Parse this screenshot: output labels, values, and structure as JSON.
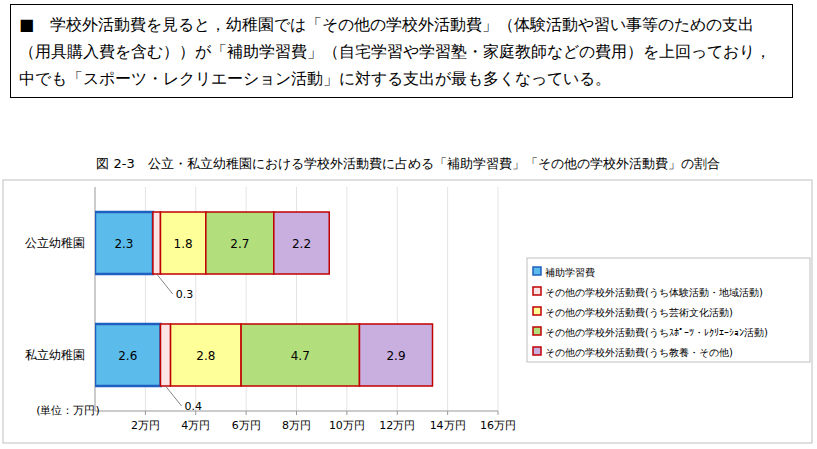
{
  "chart_data": {
    "type": "bar",
    "orientation": "horizontal",
    "stacked": true,
    "data_labels": true,
    "grid": true,
    "legend": "right",
    "annotations": [
      "■　学校外活動費を見ると，幼稚園では「その他の学校外活動費」（体験活動や習い事等のための支出（用具購入費を含む））が「補助学習費」（自宅学習や学習塾・家庭教師などの費用）を上回っており，中でも「スポーツ・レクリエーション活動」に対する支出が最も多くなっている。"
    ],
    "title": "図 2-3　公立・私立幼稚園における学校外活動費に占める「補助学習費」「その他の学校外活動費」の割合",
    "xlabel": "(単位：万円)",
    "categories": [
      "公立幼稚園",
      "私立幼稚園"
    ],
    "series": [
      {
        "name": "補助学習費",
        "color": "#5bbcec",
        "values": [
          2.3,
          2.6
        ]
      },
      {
        "name": "その他の学校外活動費(うち体験活動・地域活動)",
        "color": "#fce4e4",
        "values": [
          0.3,
          0.4
        ]
      },
      {
        "name": "その他の学校外活動費(うち芸術文化活動)",
        "color": "#ffff99",
        "values": [
          1.8,
          2.8
        ]
      },
      {
        "name": "その他の学校外活動費(うちｽﾎﾟｰﾂ・ﾚｸﾘｴｰｼｮﾝ活動)",
        "color": "#b3de7c",
        "values": [
          2.7,
          4.7
        ]
      },
      {
        "name": "その他の学校外活動費(うち教養・その他)",
        "color": "#c9aee0",
        "values": [
          2.2,
          2.9
        ]
      }
    ],
    "xlim": [
      0,
      16
    ],
    "xticks": [
      {
        "value": 2,
        "label": "2万円"
      },
      {
        "value": 4,
        "label": "4万円"
      },
      {
        "value": 6,
        "label": "6万円"
      },
      {
        "value": 8,
        "label": "8万円"
      },
      {
        "value": 10,
        "label": "10万円"
      },
      {
        "value": 12,
        "label": "12万円"
      },
      {
        "value": 14,
        "label": "14万円"
      },
      {
        "value": 16,
        "label": "16万円"
      }
    ]
  }
}
